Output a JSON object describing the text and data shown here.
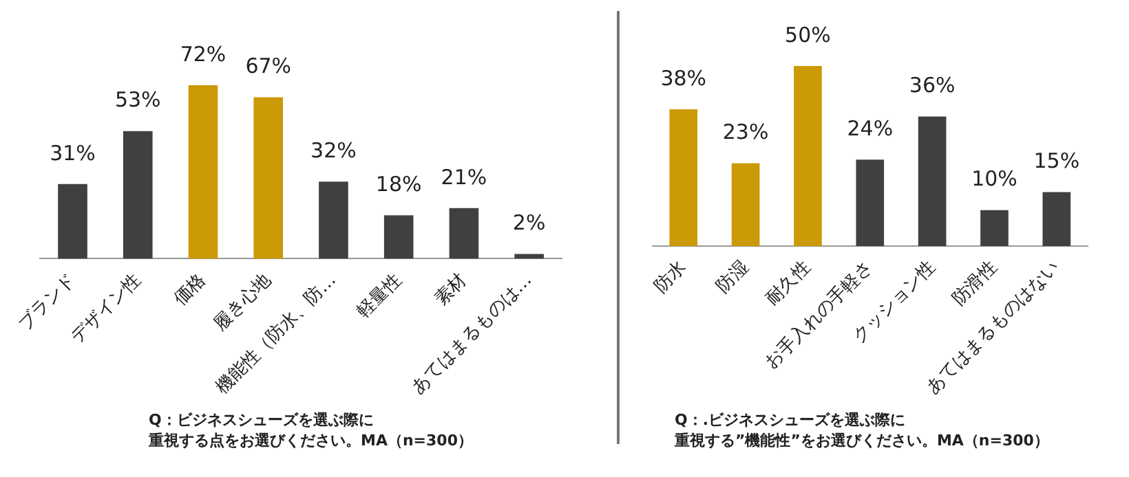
{
  "chart_data": [
    {
      "type": "bar",
      "categories": [
        "ブランド",
        "デザイン性",
        "価格",
        "履き心地",
        "機能性（防水、防…",
        "軽量性",
        "素材",
        "あてはまるものは…"
      ],
      "values": [
        31,
        53,
        72,
        67,
        32,
        18,
        21,
        2
      ],
      "value_labels": [
        "31%",
        "53%",
        "72%",
        "67%",
        "32%",
        "18%",
        "21%",
        "2%"
      ],
      "colors": [
        "#404040",
        "#404040",
        "#cc9a06",
        "#cc9a06",
        "#404040",
        "#404040",
        "#404040",
        "#404040"
      ],
      "grid": false,
      "annotations": [
        "Q：ビジネスシューズを選ぶ際に",
        "重視する点をお選びください。MA（n=300）"
      ]
    },
    {
      "type": "bar",
      "categories": [
        "防水",
        "防湿",
        "耐久性",
        "お手入れの手軽さ",
        "クッション性",
        "防滑性",
        "あてはまるものはない"
      ],
      "values": [
        38,
        23,
        50,
        24,
        36,
        10,
        15
      ],
      "value_labels": [
        "38%",
        "23%",
        "50%",
        "24%",
        "36%",
        "10%",
        "15%"
      ],
      "colors": [
        "#cc9a06",
        "#cc9a06",
        "#cc9a06",
        "#404040",
        "#404040",
        "#404040",
        "#404040"
      ],
      "grid": false,
      "annotations": [
        "Q：.ビジネスシューズを選ぶ際に",
        "重視する”機能性”をお選びください。MA（n=300）"
      ]
    }
  ]
}
